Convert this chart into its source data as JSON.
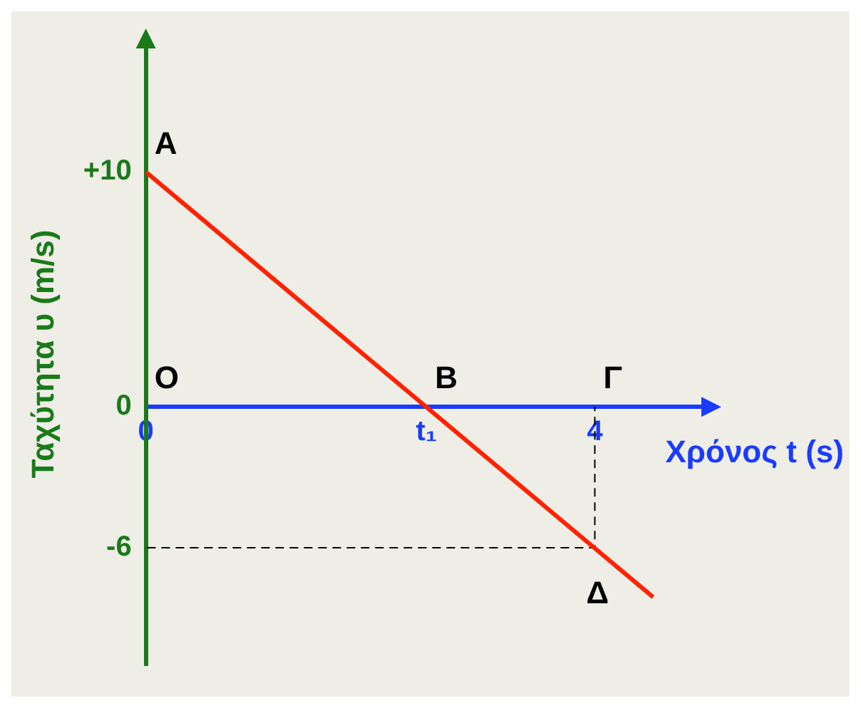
{
  "chart_data": {
    "type": "line",
    "xlabel": "Χρόνος t (s)",
    "ylabel": "Ταχύτητα υ (m/s)",
    "xlim": [
      0,
      5
    ],
    "ylim": [
      -11,
      15.5
    ],
    "xticks": [
      0,
      {
        "value": 2.5,
        "label": "t₁"
      },
      4
    ],
    "yticks": [
      {
        "value": 10,
        "label": "+10"
      },
      0,
      -6
    ],
    "grid": false,
    "legend": false,
    "marker": "none",
    "series": [
      {
        "color": "#ff2200",
        "x": [
          0,
          4.52
        ],
        "values": [
          10,
          -8.1
        ],
        "line_style": "solid"
      },
      {
        "color": "#000000",
        "x": [
          0,
          4,
          4
        ],
        "values": [
          -6,
          -6,
          0
        ],
        "line_style": "dashed"
      }
    ],
    "annotations": [
      "O",
      {
        "text": "A",
        "x": 0,
        "y": 10
      },
      {
        "text": "B",
        "x": 2.5,
        "y": 0
      },
      {
        "text": "Γ",
        "x": 4,
        "y": 0
      },
      {
        "text": "Δ",
        "x": 4,
        "y": -6
      }
    ]
  }
}
